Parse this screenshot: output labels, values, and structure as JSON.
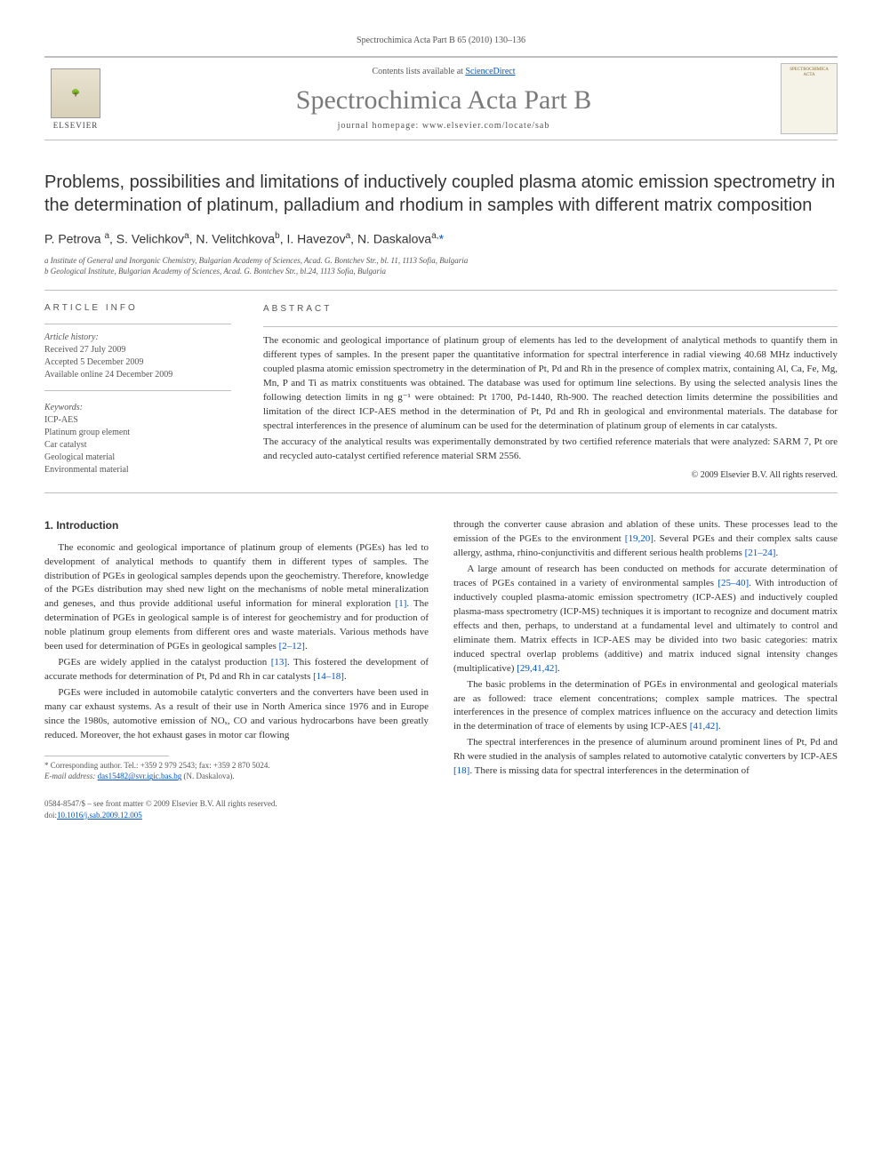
{
  "running_head": "Spectrochimica Acta Part B 65 (2010) 130–136",
  "header": {
    "contents_prefix": "Contents lists available at ",
    "contents_link": "ScienceDirect",
    "journal_name": "Spectrochimica Acta Part B",
    "homepage_prefix": "journal homepage: ",
    "homepage_url": "www.elsevier.com/locate/sab",
    "publisher_label": "ELSEVIER",
    "cover_label": "SPECTROCHIMICA ACTA"
  },
  "article": {
    "title": "Problems, possibilities and limitations of inductively coupled plasma atomic emission spectrometry in the determination of platinum, palladium and rhodium in samples with different matrix composition",
    "authors_html": "P. Petrova <sup>a</sup>, S. Velichkov<sup>a</sup>, N. Velitchkova<sup>b</sup>, I. Havezov<sup>a</sup>, N. Daskalova<sup>a,</sup><span class='star'>*</span>",
    "affiliations": [
      "a Institute of General and Inorganic Chemistry, Bulgarian Academy of Sciences, Acad. G. Bontchev Str., bl. 11, 1113 Sofia, Bulgaria",
      "b Geological Institute, Bulgarian Academy of Sciences, Acad. G. Bontchev Str., bl.24, 1113 Sofia, Bulgaria"
    ]
  },
  "info": {
    "heading": "ARTICLE INFO",
    "history_label": "Article history:",
    "history": [
      "Received 27 July 2009",
      "Accepted 5 December 2009",
      "Available online 24 December 2009"
    ],
    "keywords_label": "Keywords:",
    "keywords": [
      "ICP-AES",
      "Platinum group element",
      "Car catalyst",
      "Geological material",
      "Environmental material"
    ]
  },
  "abstract": {
    "heading": "ABSTRACT",
    "p1": "The economic and geological importance of platinum group of elements has led to the development of analytical methods to quantify them in different types of samples. In the present paper the quantitative information for spectral interference in radial viewing 40.68 MHz inductively coupled plasma atomic emission spectrometry in the determination of Pt, Pd and Rh in the presence of complex matrix, containing Al, Ca, Fe, Mg, Mn, P and Ti as matrix constituents was obtained. The database was used for optimum line selections. By using the selected analysis lines the following detection limits in ng g⁻¹ were obtained: Pt 1700, Pd-1440, Rh-900. The reached detection limits determine the possibilities and limitation of the direct ICP-AES method in the determination of Pt, Pd and Rh in geological and environmental materials. The database for spectral interferences in the presence of aluminum can be used for the determination of platinum group of elements in car catalysts.",
    "p2": "The accuracy of the analytical results was experimentally demonstrated by two certified reference materials that were analyzed: SARM 7, Pt ore and recycled auto-catalyst certified reference material SRM 2556.",
    "copyright": "© 2009 Elsevier B.V. All rights reserved."
  },
  "body": {
    "section1_heading": "1. Introduction",
    "p1": "The economic and geological importance of platinum group of elements (PGEs) has led to development of analytical methods to quantify them in different types of samples. The distribution of PGEs in geological samples depends upon the geochemistry. Therefore, knowledge of the PGEs distribution may shed new light on the mechanisms of noble metal mineralization and geneses, and thus provide additional useful information for mineral exploration [1]. The determination of PGEs in geological sample is of interest for geochemistry and for production of noble platinum group elements from different ores and waste materials. Various methods have been used for determination of PGEs in geological samples [2–12].",
    "p2": "PGEs are widely applied in the catalyst production [13]. This fostered the development of accurate methods for determination of Pt, Pd and Rh in car catalysts [14–18].",
    "p3": "PGEs were included in automobile catalytic converters and the converters have been used in many car exhaust systems. As a result of their use in North America since 1976 and in Europe since the 1980s, automotive emission of NOₓ, CO and various hydrocarbons have been greatly reduced. Moreover, the hot exhaust gases in motor car flowing",
    "p4": "through the converter cause abrasion and ablation of these units. These processes lead to the emission of the PGEs to the environment [19,20]. Several PGEs and their complex salts cause allergy, asthma, rhino-conjunctivitis and different serious health problems [21–24].",
    "p5": "A large amount of research has been conducted on methods for accurate determination of traces of PGEs contained in a variety of environmental samples [25–40]. With introduction of inductively coupled plasma-atomic emission spectrometry (ICP-AES) and inductively coupled plasma-mass spectrometry (ICP-MS) techniques it is important to recognize and document matrix effects and then, perhaps, to understand at a fundamental level and ultimately to control and eliminate them. Matrix effects in ICP-AES may be divided into two basic categories: matrix induced spectral overlap problems (additive) and matrix induced signal intensity changes (multiplicative) [29,41,42].",
    "p6": "The basic problems in the determination of PGEs in environmental and geological materials are as followed: trace element concentrations; complex sample matrices. The spectral interferences in the presence of complex matrices influence on the accuracy and detection limits in the determination of trace of elements by using ICP-AES [41,42].",
    "p7": "The spectral interferences in the presence of aluminum around prominent lines of Pt, Pd and Rh were studied in the analysis of samples related to automotive catalytic converters by ICP-AES [18]. There is missing data for spectral interferences in the determination of"
  },
  "refs": {
    "r1": "[1]",
    "r2_12": "[2–12]",
    "r13": "[13]",
    "r14_18": "[14–18]",
    "r19_20": "[19,20]",
    "r21_24": "[21–24]",
    "r25_40": "[25–40]",
    "r29_41_42": "[29,41,42]",
    "r41_42": "[41,42]",
    "r18": "[18]"
  },
  "footnote": {
    "corr": "* Corresponding author. Tel.: +359 2 979 2543; fax: +359 2 870 5024.",
    "email_label": "E-mail address: ",
    "email": "das15482@svr.igic.bas.bg",
    "email_tail": " (N. Daskalova)."
  },
  "footer": {
    "issn_line": "0584-8547/$ – see front matter © 2009 Elsevier B.V. All rights reserved.",
    "doi_label": "doi:",
    "doi": "10.1016/j.sab.2009.12.005"
  },
  "colors": {
    "link": "#0055cc",
    "rule": "#bfbfbf",
    "journal_gray": "#7a7a7a",
    "cover_gold": "#8a6a2a"
  }
}
